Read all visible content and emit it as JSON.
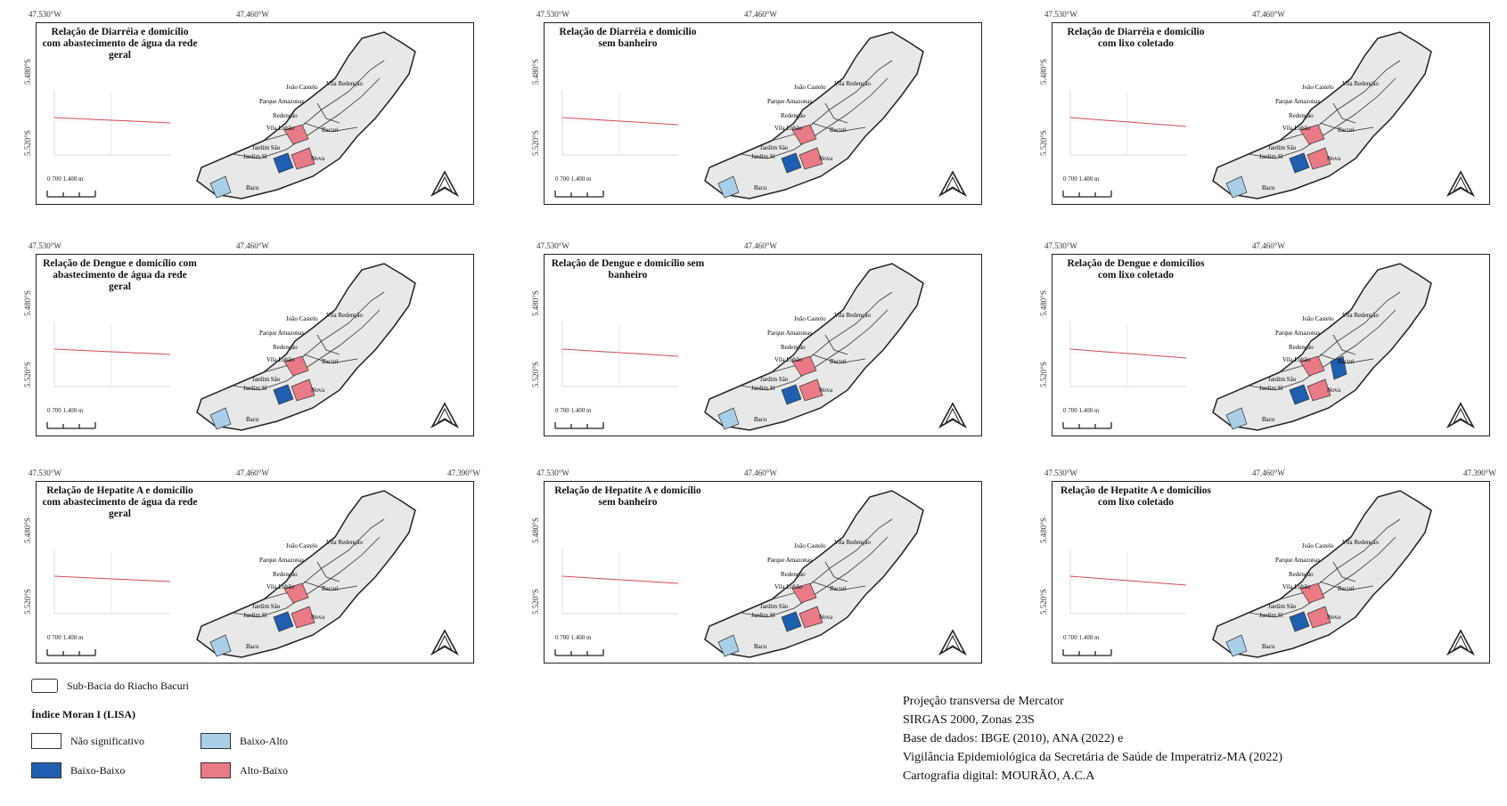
{
  "colors": {
    "not_significant": "#ffffff",
    "low_low": "#1f5fb0",
    "low_high": "#a9cfe8",
    "high_low": "#e87b86",
    "basin": "#e8e8e8",
    "outline": "#222222",
    "regression": "#d9495a"
  },
  "coords": {
    "lon_left": "47.530°W",
    "lon_mid": "47.460°W",
    "lon_right": "47.390°W",
    "lat_top": "5.480°S",
    "lat_bottom": "5.520°S"
  },
  "neighborhoods": [
    "João Castelo",
    "Vila Redenção",
    "Parque Amazonas",
    "Redenção",
    "Vila Lobão",
    "Bacuri",
    "Jardim São",
    "Jardim Sl",
    "Nova",
    "Bacu"
  ],
  "panels": [
    {
      "title": "Relação de Diarréia e domicílio com abastecimento de água da rede geral",
      "scale": "700 1.400 m"
    },
    {
      "title": "Relação de Diarréia e domicílio sem banheiro",
      "scale": "700 1.400 m"
    },
    {
      "title": "Relação de Diarréia e domicílio com lixo coletado",
      "scale": "700 1.400 m"
    },
    {
      "title": "Relação de Dengue e domicílio com abastecimento de água da rede geral",
      "scale": "700 1.400 m"
    },
    {
      "title": "Relação de Dengue e domicílio sem banheiro",
      "scale": "700 1.400 m"
    },
    {
      "title": "Relação de Dengue e domicílios com lixo coletado",
      "scale": "700 1.400 m"
    },
    {
      "title": "Relação de Hepatite A e domicílio com abastecimento de água da rede geral",
      "scale": "700 1.400 m"
    },
    {
      "title": "Relação de Hepatite A e domicílio sem banheiro",
      "scale": "700 1.400 m"
    },
    {
      "title": "Relação de Hepatite A e domicílios com lixo coletado",
      "scale": "700 1.400 m"
    }
  ],
  "legend": {
    "basin_label": "Sub-Bacia do Riacho Bacuri",
    "title": "Índice Moran I (LISA)",
    "not_significant": "Não significativo",
    "low_high": "Baixo-Alto",
    "low_low": "Baixo-Baixo",
    "high_low": "Alto-Baixo"
  },
  "credits": {
    "line1": "Projeção transversa de Mercator",
    "line2": "SIRGAS 2000, Zonas 23S",
    "line3": "Base de dados: IBGE (2010), ANA (2022) e",
    "line4": "Vigilância Epidemiológica da Secretária de Saúde de Imperatriz-MA (2022)",
    "line5": "Cartografia digital: MOURÃO, A.C.A"
  }
}
